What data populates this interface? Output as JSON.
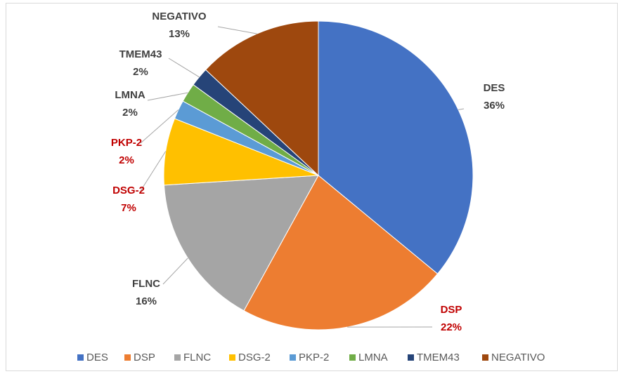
{
  "chart_data": {
    "type": "pie",
    "categories": [
      "DES",
      "DSP",
      "FLNC",
      "DSG-2",
      "PKP-2",
      "LMNA",
      "TMEM43",
      "NEGATIVO"
    ],
    "values": [
      36,
      22,
      16,
      7,
      2,
      2,
      2,
      13
    ],
    "value_labels": [
      "36%",
      "22%",
      "16%",
      "7%",
      "2%",
      "2%",
      "2%",
      "13%"
    ],
    "colors": [
      "#4472c4",
      "#ed7d31",
      "#a5a5a5",
      "#ffc000",
      "#5b9bd5",
      "#70ad47",
      "#264478",
      "#9e480e"
    ],
    "label_colors": [
      "#404040",
      "#c00000",
      "#404040",
      "#c00000",
      "#c00000",
      "#404040",
      "#404040",
      "#404040"
    ],
    "legend": "bottom"
  }
}
